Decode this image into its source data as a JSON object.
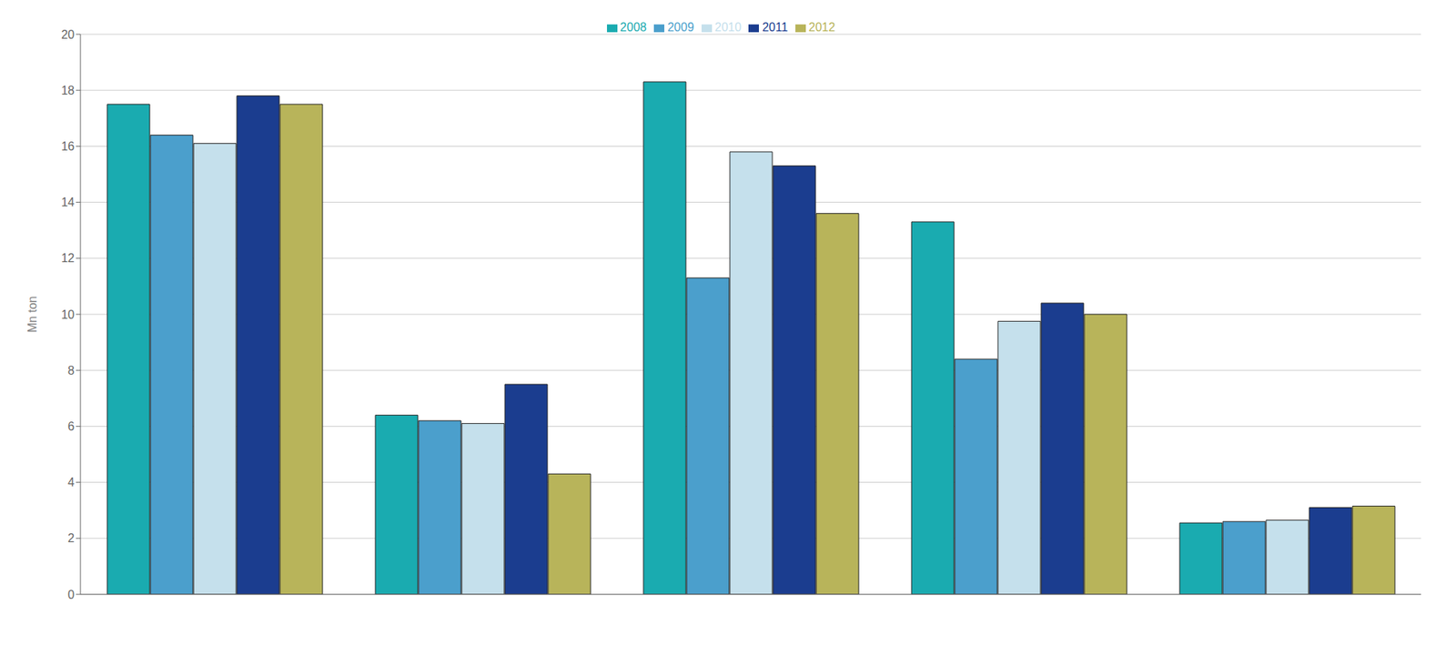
{
  "chart_data": {
    "type": "bar",
    "ylabel": "Mn ton",
    "categories": [
      null,
      null,
      null,
      null,
      null
    ],
    "series": [
      {
        "name": "2008",
        "color": "#1AABB0",
        "values": [
          17.5,
          6.4,
          18.3,
          13.3,
          2.55
        ]
      },
      {
        "name": "2009",
        "color": "#4B9FCC",
        "values": [
          16.4,
          6.2,
          11.3,
          8.4,
          2.6
        ]
      },
      {
        "name": "2010",
        "color": "#C5E0EC",
        "values": [
          16.1,
          6.1,
          15.8,
          9.75,
          2.65
        ]
      },
      {
        "name": "2011",
        "color": "#1B3D8F",
        "values": [
          17.8,
          7.5,
          15.3,
          10.4,
          3.1
        ]
      },
      {
        "name": "2012",
        "color": "#B8B45A",
        "values": [
          17.5,
          4.3,
          13.6,
          10.0,
          3.15
        ]
      }
    ],
    "ylim": [
      0,
      20
    ],
    "yticks": [
      0,
      2,
      4,
      6,
      8,
      10,
      12,
      14,
      16,
      18,
      20
    ],
    "grid": true,
    "legend": "top",
    "tick_labels": "y"
  }
}
